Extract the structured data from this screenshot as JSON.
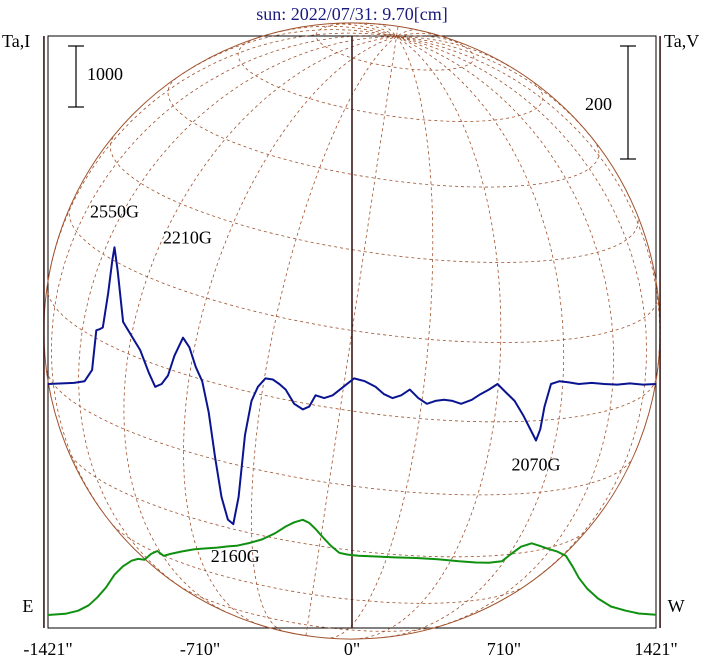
{
  "chart_data": {
    "type": "line",
    "title": "sun: 2022/07/31: 9.70[cm]",
    "left_axis_label": "Ta,I",
    "right_axis_label": "Ta,V",
    "left_scale_bar_label": "1000",
    "right_scale_bar_label": "200",
    "x_ticks": [
      {
        "value": -1421,
        "label": "-1421\""
      },
      {
        "value": -710,
        "label": "-710\""
      },
      {
        "value": 0,
        "label": "0\""
      },
      {
        "value": 710,
        "label": "710\""
      },
      {
        "value": 1421,
        "label": "1421\""
      }
    ],
    "xlim": [
      -1421,
      1421
    ],
    "limb_markers": [
      {
        "value": -1440,
        "label": "E"
      },
      {
        "value": 1440,
        "label": "W"
      }
    ],
    "solar_disk": {
      "center_x": 0,
      "radius": 1440
    },
    "colors": {
      "intensity": "#109010",
      "polarization": "#0a1490",
      "disk": "#a0522d",
      "title": "#1a1a80"
    },
    "series": [
      {
        "id": "intensity",
        "points": [
          [
            -1421,
            0
          ],
          [
            -1340,
            20
          ],
          [
            -1280,
            70
          ],
          [
            -1230,
            160
          ],
          [
            -1190,
            290
          ],
          [
            -1150,
            450
          ],
          [
            -1110,
            660
          ],
          [
            -1070,
            800
          ],
          [
            -1030,
            890
          ],
          [
            -1000,
            920
          ],
          [
            -970,
            905
          ],
          [
            -940,
            1000
          ],
          [
            -910,
            1050
          ],
          [
            -880,
            970
          ],
          [
            -850,
            1000
          ],
          [
            -800,
            1040
          ],
          [
            -740,
            1075
          ],
          [
            -690,
            1090
          ],
          [
            -630,
            1105
          ],
          [
            -580,
            1125
          ],
          [
            -540,
            1135
          ],
          [
            -480,
            1180
          ],
          [
            -420,
            1240
          ],
          [
            -360,
            1340
          ],
          [
            -310,
            1450
          ],
          [
            -270,
            1520
          ],
          [
            -230,
            1560
          ],
          [
            -200,
            1510
          ],
          [
            -170,
            1410
          ],
          [
            -140,
            1290
          ],
          [
            -100,
            1140
          ],
          [
            -60,
            1020
          ],
          [
            -20,
            990
          ],
          [
            30,
            970
          ],
          [
            100,
            960
          ],
          [
            200,
            945
          ],
          [
            300,
            935
          ],
          [
            400,
            915
          ],
          [
            500,
            880
          ],
          [
            580,
            860
          ],
          [
            640,
            855
          ],
          [
            700,
            880
          ],
          [
            740,
            990
          ],
          [
            790,
            1120
          ],
          [
            840,
            1175
          ],
          [
            880,
            1130
          ],
          [
            920,
            1080
          ],
          [
            960,
            1040
          ],
          [
            1000,
            970
          ],
          [
            1030,
            800
          ],
          [
            1060,
            610
          ],
          [
            1100,
            430
          ],
          [
            1150,
            270
          ],
          [
            1210,
            140
          ],
          [
            1280,
            70
          ],
          [
            1340,
            25
          ],
          [
            1421,
            5
          ]
        ]
      },
      {
        "id": "polarization",
        "points": [
          [
            -1421,
            0
          ],
          [
            -1300,
            2
          ],
          [
            -1250,
            5
          ],
          [
            -1215,
            25
          ],
          [
            -1195,
            95
          ],
          [
            -1180,
            97
          ],
          [
            -1165,
            100
          ],
          [
            -1140,
            160
          ],
          [
            -1120,
            220
          ],
          [
            -1110,
            242
          ],
          [
            -1095,
            200
          ],
          [
            -1070,
            110
          ],
          [
            -1030,
            85
          ],
          [
            -990,
            60
          ],
          [
            -950,
            20
          ],
          [
            -920,
            -5
          ],
          [
            -890,
            0
          ],
          [
            -860,
            15
          ],
          [
            -830,
            50
          ],
          [
            -790,
            82
          ],
          [
            -760,
            65
          ],
          [
            -730,
            30
          ],
          [
            -700,
            5
          ],
          [
            -670,
            -50
          ],
          [
            -640,
            -130
          ],
          [
            -610,
            -200
          ],
          [
            -580,
            -240
          ],
          [
            -555,
            -248
          ],
          [
            -530,
            -200
          ],
          [
            -500,
            -90
          ],
          [
            -470,
            -30
          ],
          [
            -440,
            -5
          ],
          [
            -405,
            10
          ],
          [
            -370,
            8
          ],
          [
            -340,
            0
          ],
          [
            -310,
            -10
          ],
          [
            -270,
            -35
          ],
          [
            -230,
            -45
          ],
          [
            -200,
            -40
          ],
          [
            -170,
            -20
          ],
          [
            -130,
            -25
          ],
          [
            -90,
            -20
          ],
          [
            -40,
            -5
          ],
          [
            10,
            10
          ],
          [
            60,
            5
          ],
          [
            110,
            -5
          ],
          [
            150,
            -18
          ],
          [
            190,
            -25
          ],
          [
            230,
            -20
          ],
          [
            270,
            -10
          ],
          [
            310,
            -25
          ],
          [
            350,
            -35
          ],
          [
            390,
            -30
          ],
          [
            430,
            -28
          ],
          [
            470,
            -30
          ],
          [
            510,
            -35
          ],
          [
            560,
            -28
          ],
          [
            600,
            -18
          ],
          [
            640,
            -10
          ],
          [
            680,
            0
          ],
          [
            720,
            -15
          ],
          [
            760,
            -30
          ],
          [
            800,
            -55
          ],
          [
            840,
            -85
          ],
          [
            860,
            -100
          ],
          [
            880,
            -80
          ],
          [
            900,
            -40
          ],
          [
            930,
            0
          ],
          [
            970,
            5
          ],
          [
            1010,
            3
          ],
          [
            1060,
            0
          ],
          [
            1120,
            2
          ],
          [
            1180,
            0
          ],
          [
            1240,
            -1
          ],
          [
            1300,
            1
          ],
          [
            1360,
            -1
          ],
          [
            1421,
            0
          ]
        ]
      }
    ],
    "annotations": [
      {
        "label": "2550G",
        "x": -1110,
        "series": "polarization"
      },
      {
        "label": "2210G",
        "x": -760,
        "series": "polarization"
      },
      {
        "label": "2160G",
        "x": -555,
        "series": "polarization"
      },
      {
        "label": "2070G",
        "x": 860,
        "series": "polarization"
      }
    ]
  }
}
